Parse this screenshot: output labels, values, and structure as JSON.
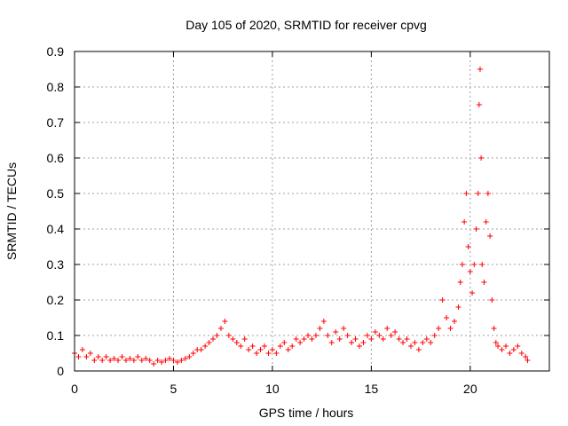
{
  "chart_data": {
    "type": "scatter",
    "title": "Day 105 of 2020, SRMTID for receiver cpvg",
    "xlabel": "GPS time / hours",
    "ylabel": "SRMTID / TECUs",
    "xlim": [
      0,
      24
    ],
    "ylim": [
      0,
      0.9
    ],
    "xticks": [
      "0",
      "5",
      "10",
      "15",
      "20"
    ],
    "yticks": [
      "0",
      "0.1",
      "0.2",
      "0.3",
      "0.4",
      "0.5",
      "0.6",
      "0.7",
      "0.8",
      "0.9"
    ],
    "grid": true,
    "marker": "+",
    "color": "#ff0000",
    "series": [
      {
        "name": "SRMTID",
        "x": [
          0.0,
          0.2,
          0.4,
          0.6,
          0.8,
          1.0,
          1.2,
          1.4,
          1.6,
          1.8,
          2.0,
          2.2,
          2.4,
          2.6,
          2.8,
          3.0,
          3.2,
          3.4,
          3.6,
          3.8,
          4.0,
          4.2,
          4.4,
          4.6,
          4.8,
          5.0,
          5.2,
          5.4,
          5.6,
          5.8,
          6.0,
          6.2,
          6.4,
          6.6,
          6.8,
          7.0,
          7.2,
          7.4,
          7.6,
          7.8,
          8.0,
          8.2,
          8.4,
          8.6,
          8.8,
          9.0,
          9.2,
          9.4,
          9.6,
          9.8,
          10.0,
          10.2,
          10.4,
          10.6,
          10.8,
          11.0,
          11.2,
          11.4,
          11.6,
          11.8,
          12.0,
          12.2,
          12.4,
          12.6,
          12.8,
          13.0,
          13.2,
          13.4,
          13.6,
          13.8,
          14.0,
          14.2,
          14.4,
          14.6,
          14.8,
          15.0,
          15.2,
          15.4,
          15.6,
          15.8,
          16.0,
          16.2,
          16.4,
          16.6,
          16.8,
          17.0,
          17.2,
          17.4,
          17.6,
          17.8,
          18.0,
          18.2,
          18.4,
          18.6,
          18.8,
          19.0,
          19.2,
          19.4,
          19.5,
          19.6,
          19.7,
          19.8,
          19.9,
          20.0,
          20.1,
          20.2,
          20.3,
          20.4,
          20.45,
          20.5,
          20.55,
          20.6,
          20.7,
          20.8,
          20.9,
          21.0,
          21.1,
          21.2,
          21.3,
          21.4,
          21.6,
          21.8,
          22.0,
          22.2,
          22.4,
          22.6,
          22.8,
          22.9
        ],
        "y": [
          0.05,
          0.04,
          0.06,
          0.04,
          0.05,
          0.03,
          0.04,
          0.03,
          0.04,
          0.03,
          0.035,
          0.03,
          0.04,
          0.03,
          0.035,
          0.03,
          0.04,
          0.03,
          0.035,
          0.03,
          0.02,
          0.03,
          0.025,
          0.03,
          0.035,
          0.03,
          0.025,
          0.03,
          0.035,
          0.04,
          0.05,
          0.06,
          0.06,
          0.07,
          0.08,
          0.09,
          0.1,
          0.12,
          0.14,
          0.1,
          0.09,
          0.08,
          0.07,
          0.09,
          0.06,
          0.07,
          0.05,
          0.06,
          0.07,
          0.05,
          0.06,
          0.05,
          0.07,
          0.08,
          0.06,
          0.07,
          0.09,
          0.08,
          0.09,
          0.1,
          0.09,
          0.1,
          0.12,
          0.14,
          0.1,
          0.08,
          0.11,
          0.09,
          0.12,
          0.1,
          0.08,
          0.09,
          0.07,
          0.08,
          0.1,
          0.09,
          0.11,
          0.1,
          0.09,
          0.12,
          0.1,
          0.11,
          0.09,
          0.08,
          0.09,
          0.07,
          0.08,
          0.06,
          0.08,
          0.09,
          0.08,
          0.1,
          0.12,
          0.2,
          0.15,
          0.12,
          0.14,
          0.18,
          0.25,
          0.3,
          0.42,
          0.5,
          0.35,
          0.28,
          0.22,
          0.3,
          0.4,
          0.5,
          0.75,
          0.85,
          0.6,
          0.3,
          0.25,
          0.42,
          0.5,
          0.38,
          0.2,
          0.12,
          0.08,
          0.07,
          0.06,
          0.07,
          0.05,
          0.06,
          0.07,
          0.05,
          0.04,
          0.03
        ]
      }
    ]
  }
}
